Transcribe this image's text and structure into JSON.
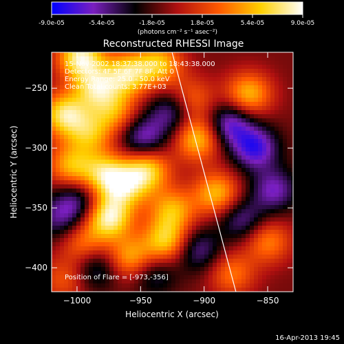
{
  "colors": {
    "background": "#000000",
    "text": "#ffffff"
  },
  "chart_data": [
    {
      "type": "colorbar",
      "ticks": [
        "-9.0e-05",
        "-5.4e-05",
        "-1.8e-05",
        "1.8e-05",
        "5.4e-05",
        "9.0e-05"
      ],
      "range": [
        -9e-05,
        9e-05
      ],
      "units_label": "(photons cm⁻² s⁻¹ asec⁻²)",
      "gradient_colors": [
        "#0000ff",
        "#7a1fbf",
        "#000000",
        "#b01010",
        "#ff5a00",
        "#ffd000",
        "#ffffff"
      ]
    },
    {
      "type": "heatmap",
      "title": "Reconstructed RHESSI Image",
      "xlabel": "Heliocentric X (arcsec)",
      "ylabel": "Heliocentric Y (arcsec)",
      "xlim": [
        -1020,
        -830
      ],
      "ylim": [
        -420,
        -220
      ],
      "xticks": [
        -1000,
        -950,
        -900,
        -850
      ],
      "yticks": [
        -250,
        -300,
        -350,
        -400
      ],
      "annotations": [
        "15-Nov-2002 18:37:38.000 to 18:43:38.000",
        "Detectors: 4F 5F 6F 7F 8F, Att 0",
        "Energy Range: 25.0 - 50.0 keV",
        "Clean    Total counts: 3.77E+03"
      ],
      "flare_position_text": "Position of Flare = [-973,-356]",
      "flare_position": [
        -973,
        -356
      ],
      "limb_line": {
        "x": [
          -929,
          -875
        ],
        "y": [
          -205,
          -420
        ]
      },
      "grid": false,
      "blobs": [
        {
          "x": -997,
          "y": -224,
          "v": 9e-05
        },
        {
          "x": -985,
          "y": -250,
          "v": 7e-05
        },
        {
          "x": -960,
          "y": -238,
          "v": 7.5e-05
        },
        {
          "x": -935,
          "y": -230,
          "v": 6.5e-05
        },
        {
          "x": -1010,
          "y": -272,
          "v": 8e-05
        },
        {
          "x": -990,
          "y": -288,
          "v": 5.5e-05
        },
        {
          "x": -970,
          "y": -270,
          "v": 5e-05
        },
        {
          "x": -1005,
          "y": -315,
          "v": 6e-05
        },
        {
          "x": -978,
          "y": -322,
          "v": 7e-05
        },
        {
          "x": -945,
          "y": -318,
          "v": 7.5e-05
        },
        {
          "x": -962,
          "y": -333,
          "v": 6e-05
        },
        {
          "x": -925,
          "y": -352,
          "v": 6e-05
        },
        {
          "x": -975,
          "y": -358,
          "v": 9e-05
        },
        {
          "x": -995,
          "y": -380,
          "v": 4.5e-05
        },
        {
          "x": -958,
          "y": -392,
          "v": 6e-05
        },
        {
          "x": -930,
          "y": -378,
          "v": 7e-05
        },
        {
          "x": -905,
          "y": -292,
          "v": 7e-05
        },
        {
          "x": -910,
          "y": -260,
          "v": 4.5e-05
        },
        {
          "x": -865,
          "y": -255,
          "v": 6.5e-05
        },
        {
          "x": -890,
          "y": -338,
          "v": 6.5e-05
        },
        {
          "x": -850,
          "y": -378,
          "v": 5e-05
        },
        {
          "x": -878,
          "y": -405,
          "v": 4.5e-05
        },
        {
          "x": -1010,
          "y": -410,
          "v": 3.5e-05
        },
        {
          "x": -948,
          "y": -292,
          "v": -5.5e-05
        },
        {
          "x": -925,
          "y": -270,
          "v": -5e-05
        },
        {
          "x": -880,
          "y": -280,
          "v": -6e-05
        },
        {
          "x": -860,
          "y": -300,
          "v": -6.5e-05
        },
        {
          "x": -845,
          "y": -335,
          "v": -5e-05
        },
        {
          "x": -870,
          "y": -360,
          "v": -4.5e-05
        },
        {
          "x": -905,
          "y": -385,
          "v": -4.5e-05
        },
        {
          "x": -1000,
          "y": -345,
          "v": -4.5e-05
        },
        {
          "x": -985,
          "y": -400,
          "v": -4e-05
        },
        {
          "x": -940,
          "y": -405,
          "v": -3.5e-05
        },
        {
          "x": -1015,
          "y": -360,
          "v": -3.5e-05
        }
      ]
    }
  ],
  "footer": {
    "timestamp": "16-Apr-2013 19:45"
  }
}
